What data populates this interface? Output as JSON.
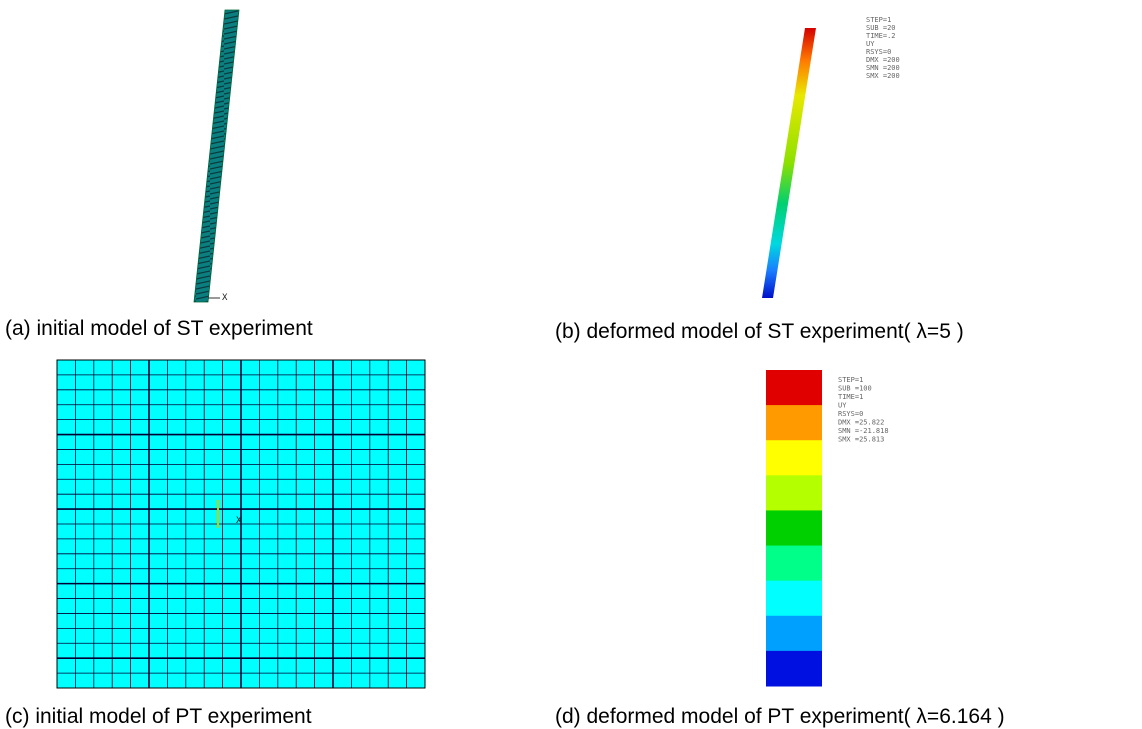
{
  "panels": [
    {
      "caption": "(a) initial model of ST experiment",
      "axis_label": "X"
    },
    {
      "caption": "(b) deformed model of ST experiment( λ=5 )",
      "notes": [
        "STEP=1",
        "SUB =20",
        "TIME=.2",
        "UY",
        "RSYS=0",
        "DMX =200",
        "SMN =200",
        "SMX =200"
      ]
    },
    {
      "caption": "(c) initial model of PT experiment",
      "axis_label": "X"
    },
    {
      "caption": "(d) deformed model of PT experiment( λ=6.164 )",
      "notes": [
        "STEP=1",
        "SUB =100",
        "TIME=1",
        "UY",
        "RSYS=0",
        "DMX =25.822",
        "SMN =-21.818",
        "SMX =25.813"
      ]
    }
  ]
}
